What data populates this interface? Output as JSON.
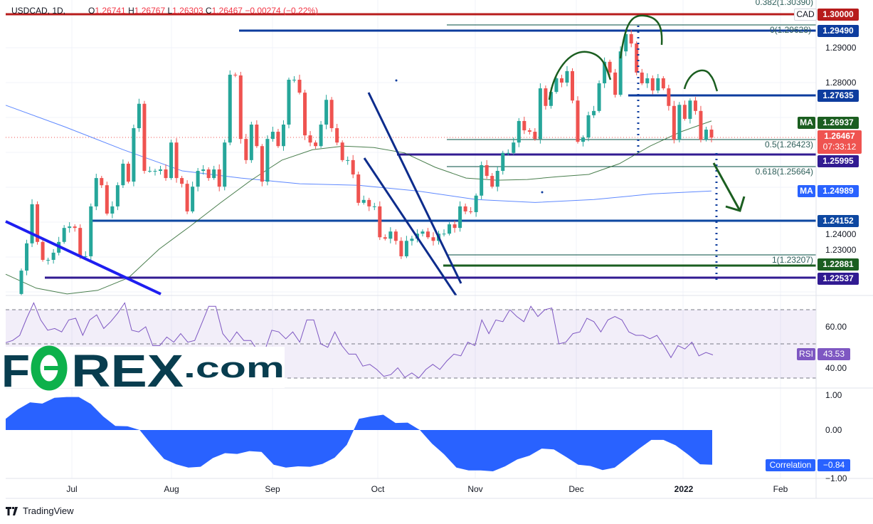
{
  "header": {
    "symbol": "USDCAD, 1D,",
    "open_label": "O",
    "open": "1.26741",
    "high_label": "H",
    "high": "1.26767",
    "low_label": "L",
    "low": "1.26303",
    "close_label": "C",
    "close": "1.26467",
    "change": "−0.00274 (−0.22%)"
  },
  "currency_badge": "CAD",
  "price_axis": {
    "ticks": [
      "1.29000",
      "1.28000",
      "1.24000",
      "1.23000"
    ]
  },
  "levels": [
    {
      "value": "1.30000",
      "color": "#B71C1C"
    },
    {
      "value": "1.29490",
      "color": "#0D3C9E"
    },
    {
      "value": "1.27635",
      "color": "#0D3C9E"
    },
    {
      "value": "1.25995",
      "color": "#311B92"
    },
    {
      "value": "1.24152",
      "color": "#0D47A1"
    },
    {
      "value": "1.22881",
      "color": "#1B5E20"
    },
    {
      "value": "1.22537",
      "color": "#311B92"
    }
  ],
  "fib": [
    {
      "text": "0.382(1.30390)"
    },
    {
      "text": "0(1.29628)"
    },
    {
      "text": "0.5(1.26423)"
    },
    {
      "text": "0.618(1.25664)"
    },
    {
      "text": "1(1.23207)"
    }
  ],
  "ma_fast": {
    "label": "MA",
    "value": "1.26937",
    "color": "#1B5E20"
  },
  "ma_slow": {
    "label": "MA",
    "value": "1.24989",
    "color": "#2962FF"
  },
  "current_price": {
    "value": "1.26467",
    "countdown": "07:33:12",
    "color": "#EF5350"
  },
  "rsi": {
    "label": "RSI",
    "value": "43.53",
    "ticks": [
      "60.00",
      "40.00"
    ],
    "color": "#7E57C2"
  },
  "correlation": {
    "label": "Correlation",
    "value": "−0.84",
    "ticks": [
      "1.00",
      "0.00",
      "−1.00"
    ],
    "color": "#2962FF"
  },
  "time_axis": [
    "Jul",
    "Aug",
    "Sep",
    "Oct",
    "Nov",
    "Dec",
    "2022",
    "Feb"
  ],
  "logo": {
    "text": "FOREX.com"
  },
  "footer": {
    "brand": "TradingView"
  },
  "chart_data": {
    "type": "candlestick",
    "symbol": "USDCAD",
    "interval": "1D",
    "up_color": "#26A69A",
    "down_color": "#EF5350",
    "first_open": 1.2211,
    "closes": [
      1.2276,
      1.2352,
      1.2461,
      1.2356,
      1.2306,
      1.2306,
      1.2326,
      1.2356,
      1.2395,
      1.2399,
      1.2395,
      1.2316,
      1.2316,
      1.2455,
      1.2534,
      1.2514,
      1.2435,
      1.2455,
      1.2514,
      1.2574,
      1.2524,
      1.2673,
      1.2741,
      1.2554,
      1.2554,
      1.2554,
      1.2558,
      1.2534,
      1.2633,
      1.2534,
      1.2518,
      1.2441,
      1.251,
      1.2554,
      1.2558,
      1.2534,
      1.2558,
      1.251,
      1.2633,
      1.2822,
      1.282,
      1.2643,
      1.2584,
      1.2683,
      1.2623,
      1.2524,
      1.2643,
      1.2663,
      1.2623,
      1.2683,
      1.2808,
      1.2808,
      1.2772,
      1.2653,
      1.2633,
      1.2623,
      1.2683,
      1.2752,
      1.2673,
      1.2633,
      1.2584,
      1.2584,
      1.2544,
      1.2465,
      1.2473,
      1.2455,
      1.2455,
      1.2369,
      1.2365,
      1.2385,
      1.2359,
      1.2316,
      1.2359,
      1.2365,
      1.2379,
      1.2385,
      1.2369,
      1.2359,
      1.2379,
      1.2379,
      1.2405,
      1.2395,
      1.2455,
      1.2441,
      1.2439,
      1.2485,
      1.257,
      1.254,
      1.251,
      1.2554,
      1.2604,
      1.2604,
      1.2633,
      1.2693,
      1.2667,
      1.2663,
      1.2643,
      1.2784,
      1.2735,
      1.2774,
      1.2812,
      1.28,
      1.2832,
      1.275,
      1.2635,
      1.2647,
      1.2709,
      1.2721,
      1.2798,
      1.2858,
      1.2828,
      1.2766,
      1.2887,
      1.2935,
      1.2909,
      1.2828,
      1.2798,
      1.2812,
      1.2778,
      1.2812,
      1.2784,
      1.2735,
      1.2641,
      1.2738,
      1.2699,
      1.275,
      1.2721,
      1.2641,
      1.2669,
      1.26467
    ],
    "ma_fast_values": [
      1.2266,
      1.2227,
      1.2211,
      1.2221,
      1.2256,
      1.2336,
      1.2399,
      1.2465,
      1.2528,
      1.2584,
      1.2613,
      1.2623,
      1.2619,
      1.2604,
      1.2564,
      1.2534,
      1.2528,
      1.253,
      1.2538,
      1.2544,
      1.2574,
      1.2623,
      1.2663,
      1.2693
    ],
    "ma_slow_values": [
      1.2737,
      1.2677,
      1.2613,
      1.2554,
      1.2534,
      1.2518,
      1.2514,
      1.2498,
      1.2474,
      1.2466,
      1.2474,
      1.249,
      1.2498
    ],
    "rsi_values": [
      50.7,
      52,
      55,
      65,
      74,
      64,
      58,
      59,
      57,
      64,
      65,
      55,
      64,
      67,
      59,
      63,
      68,
      74,
      58,
      57,
      60,
      49,
      49,
      54,
      51,
      56,
      51,
      52,
      62,
      72,
      72,
      56,
      51,
      57,
      52,
      52,
      46,
      46,
      58,
      57,
      53,
      57,
      51,
      64,
      64,
      50,
      48,
      57,
      49,
      44,
      44,
      37,
      38,
      35,
      31,
      32,
      36,
      30.4,
      33,
      30,
      35,
      38,
      35,
      40,
      44,
      43,
      51,
      49,
      64,
      56,
      64,
      63,
      70,
      66,
      63,
      72,
      66,
      70,
      71,
      50,
      51,
      56,
      57,
      65,
      63,
      57,
      64,
      66,
      64,
      57,
      55,
      55,
      53,
      55,
      49,
      42,
      49,
      47,
      51,
      43,
      45,
      43.53
    ],
    "rsi_levels": [
      70,
      50,
      30
    ],
    "correlation_values": [
      0.27,
      0.5,
      0.67,
      0.64,
      0.78,
      0.8,
      0.8,
      0.63,
      0.33,
      0.1,
      0.09,
      0,
      -0.36,
      -0.7,
      -0.83,
      -0.91,
      -0.89,
      -0.68,
      -0.56,
      -0.58,
      -0.51,
      -0.53,
      -0.84,
      -0.91,
      -0.88,
      -0.89,
      -0.82,
      -0.67,
      -0.36,
      0.27,
      0.33,
      0.37,
      0.17,
      0.18,
      0,
      -0.33,
      -0.59,
      -0.91,
      -0.98,
      -0.98,
      -1.0,
      -0.88,
      -0.71,
      -0.62,
      -0.45,
      -0.47,
      -0.65,
      -0.84,
      -0.87,
      -0.97,
      -0.91,
      -0.68,
      -0.45,
      -0.24,
      -0.24,
      -0.37,
      -0.59,
      -0.83,
      -0.84
    ],
    "price_range": [
      1.2211,
      1.303
    ],
    "rsi_range": [
      30,
      70
    ],
    "correlation_range": [
      -1,
      1
    ]
  }
}
